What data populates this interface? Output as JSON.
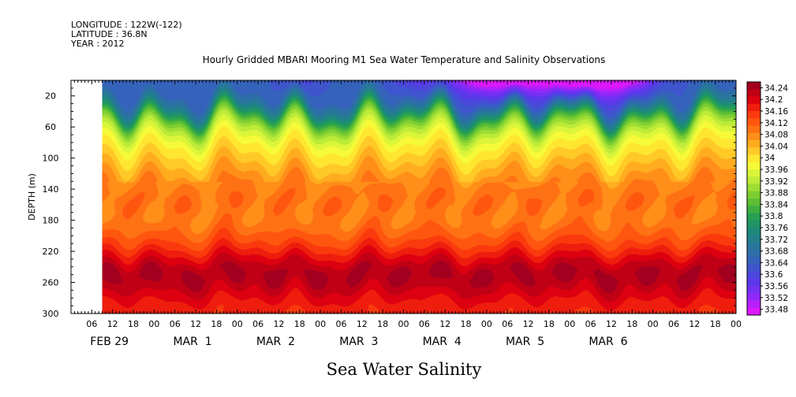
{
  "header": {
    "longitude": "LONGITUDE : 122W(-122)",
    "latitude": "LATITUDE : 36.8N",
    "year": "YEAR : 2012"
  },
  "chart_data": {
    "type": "heatmap",
    "title": "Hourly Gridded MBARI Mooring M1 Sea Water Temperature and Salinity Observations",
    "subtitle": "Sea Water Salinity",
    "ylabel": "DEPTH (m)",
    "xlabel": "",
    "y_axis": {
      "range": [
        300,
        0
      ],
      "ticks": [
        20,
        60,
        100,
        140,
        180,
        220,
        260,
        300
      ],
      "inverted": true
    },
    "x_axis": {
      "range_hours": [
        0,
        192
      ],
      "hour_ticks": [
        "06",
        "12",
        "18",
        "00",
        "06",
        "12",
        "18",
        "00",
        "06",
        "12",
        "18",
        "00",
        "06",
        "12",
        "18",
        "00",
        "06",
        "12",
        "18",
        "00",
        "06",
        "12",
        "18",
        "00",
        "06",
        "12",
        "18",
        "00",
        "06",
        "12",
        "18",
        "00"
      ],
      "date_labels": [
        "FEB 29",
        "MAR  1",
        "MAR  2",
        "MAR  3",
        "MAR  4",
        "MAR  5",
        "MAR  6"
      ],
      "data_start_hour": 9
    },
    "colorbar": {
      "levels": [
        "34.24",
        "34.2",
        "34.16",
        "34.12",
        "34.08",
        "34.04",
        "34",
        "33.96",
        "33.92",
        "33.88",
        "33.84",
        "33.8",
        "33.76",
        "33.72",
        "33.68",
        "33.64",
        "33.6",
        "33.56",
        "33.52",
        "33.48"
      ],
      "min": 33.46,
      "max": 34.26,
      "colors": [
        "#a3001f",
        "#c00015",
        "#dc0010",
        "#ef1d0d",
        "#fa3a0d",
        "#ff560f",
        "#ff7214",
        "#ff8f19",
        "#ffad1f",
        "#ffc928",
        "#ffe630",
        "#f6fa38",
        "#dbf53a",
        "#bceb38",
        "#9ddd34",
        "#7ece32",
        "#5cbf34",
        "#3eae40",
        "#27a052",
        "#1f9466",
        "#1e8a7a",
        "#22808c",
        "#27779a",
        "#2d6ea9",
        "#3563bb",
        "#3f55cd",
        "#4c47dc",
        "#5b39ea",
        "#7430f3",
        "#9128f8",
        "#b820fb",
        "#dc18fd"
      ],
      "levels_on_bar": [
        34.24,
        34.2,
        34.16,
        34.12,
        34.08,
        34.04,
        34.0,
        33.96,
        33.92,
        33.88,
        33.84,
        33.8,
        33.76,
        33.72,
        33.68,
        33.64,
        33.6,
        33.56,
        33.52,
        33.48
      ]
    },
    "depth_profile": {
      "depths": [
        0,
        10,
        20,
        30,
        40,
        50,
        60,
        70,
        80,
        90,
        100,
        110,
        120,
        130,
        140,
        150,
        160,
        170,
        180,
        190,
        200,
        210,
        220,
        230,
        240,
        250,
        260,
        270,
        280,
        290,
        300
      ],
      "salinity": [
        33.64,
        33.65,
        33.66,
        33.7,
        33.77,
        33.85,
        33.91,
        33.95,
        33.98,
        34.0,
        34.02,
        34.04,
        34.06,
        34.08,
        34.09,
        34.1,
        34.1,
        34.09,
        34.09,
        34.1,
        34.12,
        34.14,
        34.17,
        34.2,
        34.23,
        34.24,
        34.23,
        34.21,
        34.19,
        34.17,
        34.16
      ]
    },
    "surface_fresh_events": [
      {
        "hour": 118,
        "width_h": 10,
        "amp": 0.14
      },
      {
        "hour": 131,
        "width_h": 14,
        "amp": 0.16
      },
      {
        "hour": 148,
        "width_h": 12,
        "amp": 0.18
      },
      {
        "hour": 160,
        "width_h": 10,
        "amp": 0.15
      },
      {
        "hour": 100,
        "width_h": 8,
        "amp": 0.07
      },
      {
        "hour": 66,
        "width_h": 6,
        "amp": 0.05
      }
    ]
  }
}
